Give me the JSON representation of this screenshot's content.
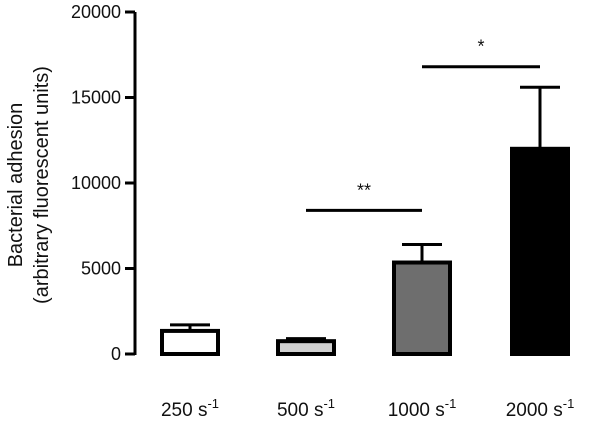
{
  "chart_data": {
    "type": "bar",
    "categories": [
      {
        "base": "250 s",
        "exp": "-1"
      },
      {
        "base": "500 s",
        "exp": "-1"
      },
      {
        "base": "1000 s",
        "exp": "-1"
      },
      {
        "base": "2000 s",
        "exp": "-1"
      }
    ],
    "values": [
      1350,
      750,
      5350,
      12000
    ],
    "errors": [
      350,
      150,
      1050,
      3600
    ],
    "bar_colors": [
      "#ffffff",
      "#d0d0d0",
      "#6e6e6e",
      "#000000"
    ],
    "ylabel": "Bacterial adhesion",
    "ylabel_sub": "(arbitrary fluorescent units)",
    "ylim": [
      0,
      20000
    ],
    "yticks": [
      0,
      5000,
      10000,
      15000,
      20000
    ],
    "significance": [
      {
        "from": 1,
        "to": 2,
        "height": 8400,
        "label": "**"
      },
      {
        "from": 2,
        "to": 3,
        "height": 16800,
        "label": "*"
      }
    ]
  }
}
